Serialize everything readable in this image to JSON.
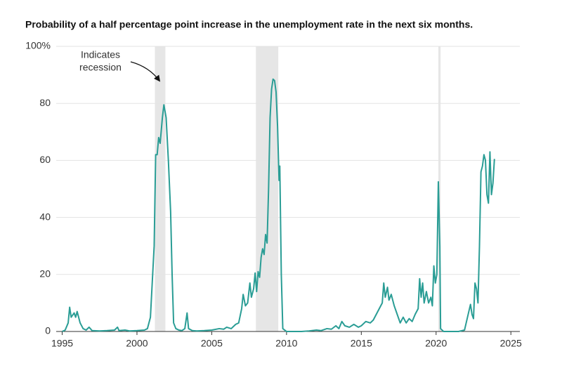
{
  "chart_data": {
    "type": "line",
    "title": "Probability of a half percentage point increase in the unemployment rate in the next six months.",
    "annotation": [
      "Indicates",
      "recession"
    ],
    "recessions": [
      [
        2001.2,
        2001.9
      ],
      [
        2007.95,
        2009.45
      ],
      [
        2020.15,
        2020.3
      ]
    ],
    "recession_color": "#e6e6e6",
    "xlim": [
      1994.6,
      2025.6
    ],
    "xticks": [
      1995,
      2000,
      2005,
      2010,
      2015,
      2020,
      2025
    ],
    "ylim": [
      0,
      100
    ],
    "yticks": [
      0,
      20,
      40,
      60,
      80,
      {
        "value": 100,
        "label": "100%"
      }
    ],
    "grid": true,
    "series": [
      {
        "color": "#2a9d95",
        "x": [
          1995.0,
          1995.2,
          1995.4,
          1995.5,
          1995.6,
          1995.8,
          1995.9,
          1996.0,
          1996.2,
          1996.4,
          1996.6,
          1996.8,
          1997.0,
          1997.5,
          1998.0,
          1998.5,
          1998.7,
          1998.8,
          1999.2,
          1999.5,
          2000.0,
          2000.5,
          2000.7,
          2000.9,
          2001.05,
          2001.15,
          2001.25,
          2001.35,
          2001.45,
          2001.55,
          2001.7,
          2001.8,
          2001.95,
          2002.1,
          2002.25,
          2002.35,
          2002.45,
          2002.6,
          2002.8,
          2003.0,
          2003.2,
          2003.35,
          2003.45,
          2003.7,
          2004.0,
          2004.5,
          2005.0,
          2005.5,
          2005.8,
          2006.0,
          2006.3,
          2006.6,
          2006.8,
          2007.0,
          2007.1,
          2007.25,
          2007.4,
          2007.55,
          2007.65,
          2007.8,
          2007.9,
          2008.0,
          2008.1,
          2008.2,
          2008.3,
          2008.4,
          2008.5,
          2008.6,
          2008.7,
          2008.8,
          2008.9,
          2009.0,
          2009.1,
          2009.2,
          2009.3,
          2009.4,
          2009.5,
          2009.55,
          2009.65,
          2009.75,
          2010.0,
          2011.0,
          2011.5,
          2012.0,
          2012.3,
          2012.7,
          2013.0,
          2013.3,
          2013.5,
          2013.7,
          2013.9,
          2014.2,
          2014.5,
          2014.8,
          2015.0,
          2015.3,
          2015.6,
          2015.8,
          2016.0,
          2016.2,
          2016.4,
          2016.5,
          2016.6,
          2016.75,
          2016.85,
          2017.0,
          2017.2,
          2017.4,
          2017.6,
          2017.8,
          2018.0,
          2018.2,
          2018.4,
          2018.6,
          2018.8,
          2018.9,
          2019.0,
          2019.1,
          2019.2,
          2019.35,
          2019.5,
          2019.65,
          2019.75,
          2019.85,
          2019.95,
          2020.05,
          2020.15,
          2020.25,
          2020.3,
          2020.5,
          2021.0,
          2021.5,
          2021.9,
          2022.1,
          2022.3,
          2022.4,
          2022.5,
          2022.6,
          2022.7,
          2022.8,
          2022.9,
          2023.0,
          2023.1,
          2023.2,
          2023.3,
          2023.4,
          2023.5,
          2023.6,
          2023.7,
          2023.8,
          2023.9
        ],
        "values": [
          0,
          0.5,
          3,
          8.5,
          5,
          6.5,
          5,
          7,
          3,
          1,
          0.5,
          1.5,
          0.3,
          0.2,
          0.3,
          0.5,
          1.5,
          0.3,
          0.5,
          0.2,
          0.3,
          0.5,
          1,
          5,
          20,
          30,
          62,
          62,
          68,
          66,
          75,
          79.5,
          75,
          60,
          42,
          20,
          3,
          1,
          0.5,
          0.3,
          1,
          6.5,
          1,
          0.3,
          0.2,
          0.3,
          0.5,
          1,
          0.8,
          1.5,
          1,
          2.5,
          3,
          8,
          13,
          9,
          10,
          17,
          12,
          15,
          20.5,
          14,
          21,
          19,
          26,
          29,
          27,
          34,
          31,
          50,
          75,
          85,
          88.5,
          88,
          84,
          72,
          53,
          58,
          20,
          1,
          0,
          0,
          0.2,
          0.5,
          0.3,
          1,
          0.8,
          2,
          1,
          3.5,
          2,
          1.5,
          2.5,
          1.5,
          2,
          3.5,
          3,
          4,
          6,
          8,
          10,
          17,
          12,
          15.5,
          11,
          13,
          9,
          6,
          3,
          5,
          3,
          4.5,
          3.5,
          6,
          8,
          18.5,
          12,
          17,
          10,
          14,
          10,
          12,
          9,
          23,
          17,
          20,
          52.5,
          30,
          1,
          0,
          0,
          0,
          0.5,
          5,
          9.5,
          6,
          4.5,
          17,
          15,
          10,
          30,
          56,
          58,
          62,
          60,
          48,
          45,
          63,
          48,
          52,
          60.5
        ]
      }
    ]
  }
}
